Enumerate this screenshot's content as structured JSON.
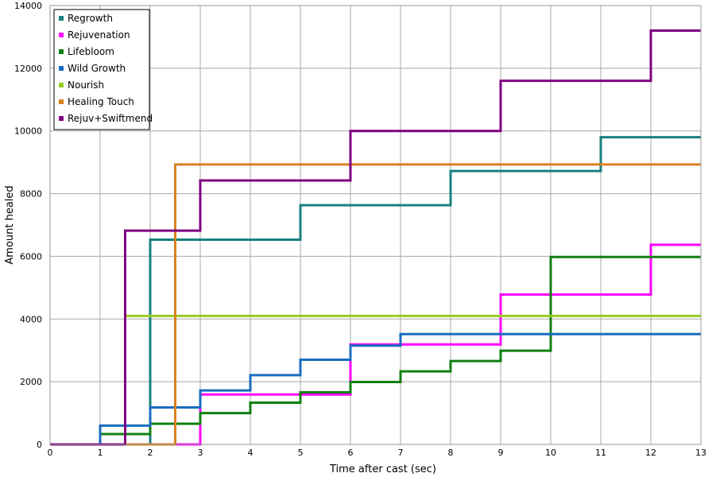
{
  "chart_data": {
    "type": "line",
    "step": true,
    "title": "",
    "xlabel": "Time after cast (sec)",
    "ylabel": "Amount healed",
    "xlim": [
      0,
      13
    ],
    "ylim": [
      0,
      14000
    ],
    "x_ticks": [
      0,
      1,
      2,
      3,
      4,
      5,
      6,
      7,
      8,
      9,
      10,
      11,
      12,
      13
    ],
    "y_ticks": [
      0,
      2000,
      4000,
      6000,
      8000,
      10000,
      12000,
      14000
    ],
    "grid": true,
    "legend_position": "top-left",
    "series": [
      {
        "name": "Regrowth",
        "color": "#1a8080",
        "points": [
          [
            0,
            0
          ],
          [
            2,
            6530
          ],
          [
            5,
            7630
          ],
          [
            8,
            8720
          ],
          [
            11,
            9800
          ],
          [
            13,
            9800
          ]
        ]
      },
      {
        "name": "Rejuvenation",
        "color": "#ff00ff",
        "points": [
          [
            0,
            0
          ],
          [
            3,
            1590
          ],
          [
            6,
            3190
          ],
          [
            9,
            4780
          ],
          [
            12,
            6370
          ],
          [
            13,
            6370
          ]
        ]
      },
      {
        "name": "Lifebloom",
        "color": "#108010",
        "points": [
          [
            0,
            0
          ],
          [
            1,
            330
          ],
          [
            2,
            660
          ],
          [
            3,
            1000
          ],
          [
            4,
            1330
          ],
          [
            5,
            1660
          ],
          [
            6,
            1990
          ],
          [
            7,
            2330
          ],
          [
            8,
            2660
          ],
          [
            9,
            2990
          ],
          [
            10,
            5980
          ],
          [
            13,
            5980
          ]
        ]
      },
      {
        "name": "Wild Growth",
        "color": "#1a6cc0",
        "points": [
          [
            0,
            0
          ],
          [
            1,
            600
          ],
          [
            2,
            1180
          ],
          [
            3,
            1720
          ],
          [
            4,
            2210
          ],
          [
            5,
            2700
          ],
          [
            6,
            3150
          ],
          [
            7,
            3520
          ],
          [
            13,
            3520
          ]
        ]
      },
      {
        "name": "Nourish",
        "color": "#99cc22",
        "points": [
          [
            0,
            0
          ],
          [
            1.5,
            4100
          ],
          [
            13,
            4100
          ]
        ]
      },
      {
        "name": "Healing Touch",
        "color": "#d98020",
        "points": [
          [
            0,
            0
          ],
          [
            2.5,
            8930
          ],
          [
            13,
            8930
          ]
        ]
      },
      {
        "name": "Rejuv+Swiftmend",
        "color": "#800080",
        "points": [
          [
            0,
            0
          ],
          [
            1.5,
            6820
          ],
          [
            3,
            8420
          ],
          [
            6,
            10000
          ],
          [
            9,
            11600
          ],
          [
            12,
            13200
          ],
          [
            13,
            13200
          ]
        ]
      }
    ]
  }
}
